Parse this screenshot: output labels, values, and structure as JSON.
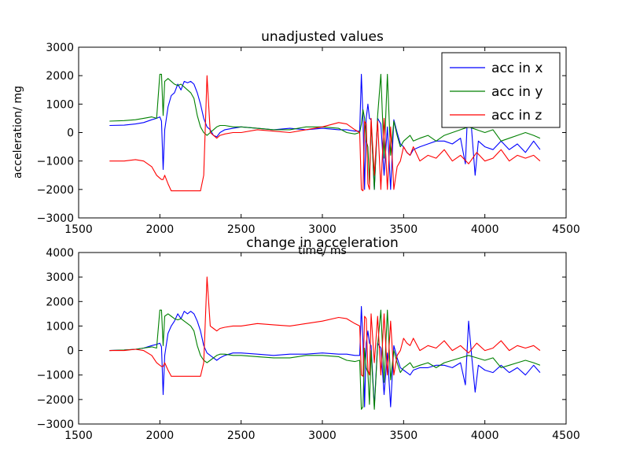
{
  "chart_data": [
    {
      "type": "line",
      "title": "unadjusted values",
      "xlabel": "time/ ms",
      "ylabel": "acceleration/ mg",
      "xlim": [
        1500,
        4500
      ],
      "ylim": [
        -3000,
        3000
      ],
      "xticks": [
        1500,
        2000,
        2500,
        3000,
        3500,
        4000,
        4500
      ],
      "yticks": [
        -3000,
        -2000,
        -1000,
        0,
        1000,
        2000,
        3000
      ],
      "grid": false,
      "legend_position": "top-right",
      "series": [
        {
          "name": "acc in x",
          "color": "#0000ff",
          "x": [
            1690,
            1780,
            1850,
            1900,
            1950,
            1980,
            2000,
            2010,
            2020,
            2030,
            2050,
            2070,
            2090,
            2110,
            2130,
            2150,
            2170,
            2190,
            2210,
            2230,
            2250,
            2270,
            2290,
            2310,
            2330,
            2350,
            2370,
            2400,
            2450,
            2500,
            2600,
            2700,
            2800,
            2900,
            3000,
            3100,
            3150,
            3200,
            3230,
            3240,
            3250,
            3260,
            3270,
            3280,
            3290,
            3300,
            3320,
            3340,
            3360,
            3380,
            3400,
            3420,
            3440,
            3460,
            3480,
            3500,
            3520,
            3540,
            3560,
            3600,
            3650,
            3700,
            3750,
            3800,
            3850,
            3880,
            3900,
            3920,
            3940,
            3960,
            4000,
            4050,
            4100,
            4150,
            4200,
            4250,
            4300,
            4340
          ],
          "y": [
            250,
            260,
            300,
            350,
            450,
            500,
            550,
            400,
            -1300,
            100,
            900,
            1300,
            1400,
            1700,
            1500,
            1800,
            1750,
            1800,
            1700,
            1400,
            1000,
            500,
            200,
            100,
            -100,
            -150,
            0,
            100,
            150,
            200,
            150,
            100,
            150,
            100,
            150,
            100,
            100,
            50,
            50,
            2050,
            500,
            -2000,
            500,
            1000,
            500,
            450,
            -2000,
            500,
            300,
            -1500,
            200,
            -2000,
            450,
            0,
            -400,
            -500,
            -700,
            -800,
            -600,
            -500,
            -400,
            -300,
            -300,
            -400,
            -200,
            -1100,
            1500,
            0,
            -1500,
            -300,
            -500,
            -600,
            -300,
            -600,
            -400,
            -700,
            -300,
            -600
          ]
        },
        {
          "name": "acc in y",
          "color": "#008000",
          "x": [
            1690,
            1780,
            1850,
            1900,
            1950,
            1980,
            2000,
            2010,
            2020,
            2030,
            2050,
            2070,
            2090,
            2110,
            2130,
            2150,
            2170,
            2190,
            2210,
            2230,
            2250,
            2270,
            2290,
            2310,
            2330,
            2350,
            2370,
            2400,
            2450,
            2500,
            2600,
            2700,
            2800,
            2900,
            3000,
            3100,
            3150,
            3200,
            3230,
            3240,
            3250,
            3260,
            3270,
            3280,
            3290,
            3300,
            3320,
            3340,
            3360,
            3380,
            3400,
            3420,
            3440,
            3460,
            3480,
            3500,
            3520,
            3540,
            3560,
            3600,
            3650,
            3700,
            3750,
            3800,
            3850,
            3900,
            3950,
            4000,
            4050,
            4100,
            4150,
            4200,
            4250,
            4300,
            4340
          ],
          "y": [
            400,
            420,
            450,
            500,
            550,
            500,
            2050,
            2050,
            600,
            1800,
            1900,
            1800,
            1700,
            1650,
            1700,
            1600,
            1500,
            1400,
            1200,
            600,
            200,
            0,
            -100,
            0,
            100,
            200,
            250,
            250,
            200,
            200,
            150,
            100,
            100,
            200,
            200,
            150,
            0,
            -50,
            0,
            300,
            800,
            500,
            -300,
            -500,
            -1800,
            400,
            -2000,
            600,
            2050,
            -900,
            2050,
            -800,
            400,
            -100,
            -500,
            -300,
            -200,
            -100,
            -300,
            -200,
            -100,
            -300,
            -100,
            0,
            100,
            200,
            100,
            0,
            100,
            -300,
            -200,
            -100,
            0,
            -100,
            -200
          ]
        },
        {
          "name": "acc in z",
          "color": "#ff0000",
          "x": [
            1690,
            1780,
            1850,
            1900,
            1950,
            1980,
            2000,
            2010,
            2020,
            2030,
            2050,
            2070,
            2090,
            2110,
            2130,
            2150,
            2170,
            2190,
            2210,
            2230,
            2250,
            2270,
            2290,
            2310,
            2330,
            2350,
            2370,
            2400,
            2450,
            2500,
            2600,
            2700,
            2800,
            2900,
            3000,
            3100,
            3150,
            3200,
            3230,
            3240,
            3250,
            3260,
            3270,
            3280,
            3290,
            3300,
            3320,
            3340,
            3360,
            3380,
            3400,
            3420,
            3440,
            3460,
            3480,
            3500,
            3520,
            3540,
            3560,
            3600,
            3650,
            3700,
            3750,
            3800,
            3850,
            3900,
            3950,
            4000,
            4050,
            4100,
            4150,
            4200,
            4250,
            4300,
            4340
          ],
          "y": [
            -1000,
            -1000,
            -950,
            -1000,
            -1200,
            -1500,
            -1600,
            -1650,
            -1650,
            -1500,
            -1800,
            -2050,
            -2050,
            -2050,
            -2050,
            -2050,
            -2050,
            -2050,
            -2050,
            -2050,
            -2050,
            -1500,
            2000,
            0,
            -100,
            -200,
            -100,
            -50,
            0,
            0,
            100,
            50,
            0,
            100,
            200,
            350,
            300,
            100,
            0,
            -2000,
            -2050,
            400,
            300,
            -1800,
            -2000,
            500,
            -1500,
            400,
            -2000,
            500,
            -2000,
            200,
            -2000,
            -1200,
            -1000,
            -500,
            -700,
            -800,
            -500,
            -1000,
            -800,
            -900,
            -600,
            -1000,
            -800,
            -1100,
            -700,
            -1000,
            -900,
            -600,
            -1000,
            -800,
            -900,
            -800,
            -1000
          ]
        }
      ]
    },
    {
      "type": "line",
      "title": "change in acceleration",
      "xlabel": "",
      "ylabel": "",
      "xlim": [
        1500,
        4500
      ],
      "ylim": [
        -3000,
        4000
      ],
      "xticks": [
        1500,
        2000,
        2500,
        3000,
        3500,
        4000,
        4500
      ],
      "yticks": [
        -3000,
        -2000,
        -1000,
        0,
        1000,
        2000,
        3000,
        4000
      ],
      "grid": false,
      "series": [
        {
          "color": "#0000ff",
          "x": [
            1690,
            1780,
            1850,
            1900,
            1950,
            1980,
            2000,
            2010,
            2020,
            2030,
            2050,
            2070,
            2090,
            2110,
            2130,
            2150,
            2170,
            2190,
            2210,
            2230,
            2250,
            2270,
            2290,
            2310,
            2330,
            2350,
            2370,
            2400,
            2450,
            2500,
            2600,
            2700,
            2800,
            2900,
            3000,
            3100,
            3150,
            3200,
            3230,
            3240,
            3250,
            3260,
            3270,
            3280,
            3290,
            3300,
            3320,
            3340,
            3360,
            3380,
            3400,
            3420,
            3440,
            3460,
            3480,
            3500,
            3520,
            3540,
            3560,
            3600,
            3650,
            3700,
            3750,
            3800,
            3850,
            3880,
            3900,
            3920,
            3940,
            3960,
            4000,
            4050,
            4100,
            4150,
            4200,
            4250,
            4300,
            4340
          ],
          "y": [
            0,
            20,
            50,
            100,
            200,
            250,
            300,
            150,
            -1800,
            -200,
            700,
            1000,
            1200,
            1500,
            1300,
            1600,
            1500,
            1600,
            1500,
            1200,
            800,
            200,
            -100,
            -200,
            -300,
            -400,
            -300,
            -200,
            -100,
            -100,
            -150,
            -200,
            -150,
            -150,
            -100,
            -150,
            -150,
            -200,
            -200,
            1800,
            300,
            -2300,
            300,
            800,
            300,
            200,
            -2300,
            300,
            100,
            -1800,
            -100,
            -2300,
            200,
            -300,
            -700,
            -800,
            -900,
            -1000,
            -800,
            -700,
            -700,
            -600,
            -600,
            -700,
            -500,
            -1400,
            1200,
            -300,
            -1700,
            -600,
            -800,
            -900,
            -600,
            -900,
            -700,
            -1000,
            -600,
            -900
          ]
        },
        {
          "color": "#008000",
          "x": [
            1690,
            1780,
            1850,
            1900,
            1950,
            1980,
            2000,
            2010,
            2020,
            2030,
            2050,
            2070,
            2090,
            2110,
            2130,
            2150,
            2170,
            2190,
            2210,
            2230,
            2250,
            2270,
            2290,
            2310,
            2330,
            2350,
            2370,
            2400,
            2450,
            2500,
            2600,
            2700,
            2800,
            2900,
            3000,
            3100,
            3150,
            3200,
            3230,
            3240,
            3250,
            3260,
            3270,
            3280,
            3290,
            3300,
            3320,
            3340,
            3360,
            3380,
            3400,
            3420,
            3440,
            3460,
            3480,
            3500,
            3520,
            3540,
            3560,
            3600,
            3650,
            3700,
            3750,
            3800,
            3850,
            3900,
            3950,
            4000,
            4050,
            4100,
            4150,
            4200,
            4250,
            4300,
            4340
          ],
          "y": [
            0,
            20,
            50,
            100,
            150,
            100,
            1650,
            1650,
            200,
            1400,
            1500,
            1400,
            1300,
            1250,
            1300,
            1200,
            1100,
            1000,
            800,
            200,
            -200,
            -400,
            -500,
            -400,
            -300,
            -200,
            -150,
            -150,
            -200,
            -200,
            -250,
            -300,
            -300,
            -200,
            -200,
            -250,
            -400,
            -450,
            -400,
            -2400,
            -2300,
            100,
            -700,
            -900,
            -2200,
            0,
            -2400,
            200,
            1650,
            -1300,
            1650,
            -1200,
            0,
            -500,
            -900,
            -700,
            -600,
            -500,
            -700,
            -600,
            -500,
            -700,
            -500,
            -400,
            -300,
            -200,
            -300,
            -400,
            -300,
            -700,
            -600,
            -500,
            -400,
            -500,
            -600
          ]
        },
        {
          "color": "#ff0000",
          "x": [
            1690,
            1780,
            1850,
            1900,
            1950,
            1980,
            2000,
            2010,
            2020,
            2030,
            2050,
            2070,
            2090,
            2110,
            2130,
            2150,
            2170,
            2190,
            2210,
            2230,
            2250,
            2270,
            2290,
            2310,
            2330,
            2350,
            2370,
            2400,
            2450,
            2500,
            2600,
            2700,
            2800,
            2900,
            3000,
            3100,
            3150,
            3200,
            3230,
            3240,
            3250,
            3260,
            3270,
            3280,
            3290,
            3300,
            3320,
            3340,
            3360,
            3380,
            3400,
            3420,
            3440,
            3460,
            3480,
            3500,
            3520,
            3540,
            3560,
            3600,
            3650,
            3700,
            3750,
            3800,
            3850,
            3900,
            3950,
            4000,
            4050,
            4100,
            4150,
            4200,
            4250,
            4300,
            4340
          ],
          "y": [
            0,
            0,
            50,
            0,
            -200,
            -500,
            -600,
            -650,
            -650,
            -500,
            -800,
            -1050,
            -1050,
            -1050,
            -1050,
            -1050,
            -1050,
            -1050,
            -1050,
            -1050,
            -1050,
            -500,
            3000,
            1000,
            900,
            800,
            900,
            950,
            1000,
            1000,
            1100,
            1050,
            1000,
            1100,
            1200,
            1350,
            1300,
            1100,
            1000,
            -1000,
            -1050,
            1400,
            1300,
            -800,
            -1000,
            1500,
            -500,
            1400,
            -1000,
            1500,
            -1000,
            1200,
            -1000,
            -200,
            0,
            500,
            300,
            200,
            500,
            0,
            200,
            100,
            400,
            0,
            200,
            -100,
            300,
            0,
            100,
            400,
            0,
            200,
            100,
            200,
            0
          ]
        }
      ]
    }
  ]
}
